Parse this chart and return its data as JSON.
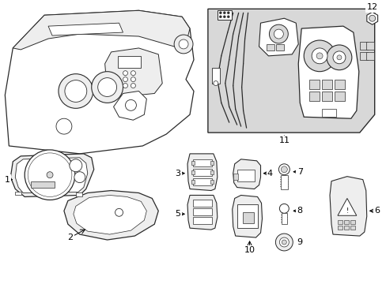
{
  "background_color": "#ffffff",
  "line_color": "#2a2a2a",
  "shade_color": "#d8d8d8",
  "light_shade": "#eeeeee"
}
